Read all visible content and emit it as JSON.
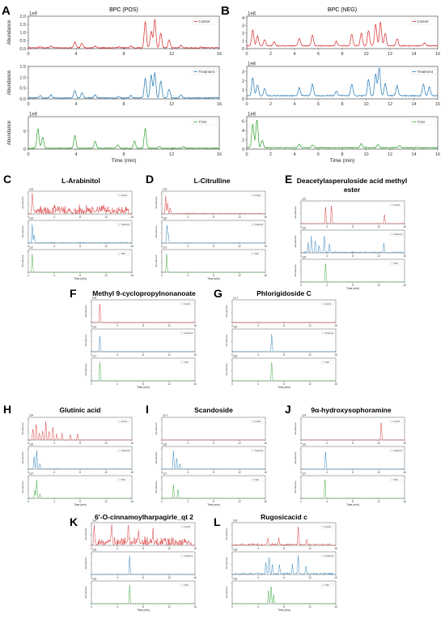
{
  "figure": {
    "colors": {
      "control": "#d62728",
      "treatment": "#1f77b4",
      "tcm": "#2ca02c",
      "axis": "#333333"
    }
  },
  "chart_data": [
    {
      "letter": "A",
      "title": "BPC (POS)",
      "type": "line",
      "xlim": [
        0,
        16
      ],
      "xticks": [
        "0",
        "4",
        "8",
        "12",
        "16"
      ],
      "xlabel": "Time (min)",
      "ylabel": "Abundance",
      "subplots": [
        {
          "series": "control",
          "legend": "Control",
          "exponent": "1e9",
          "yticks": [
            "0.0",
            "0.5",
            "1.0",
            "1.5",
            "2.0"
          ],
          "ylim": [
            0,
            2
          ],
          "peaks": [
            [
              1,
              0.08
            ],
            [
              1.9,
              0.12
            ],
            [
              3.9,
              0.35
            ],
            [
              4.5,
              0.3
            ],
            [
              5.6,
              0.12
            ],
            [
              7.6,
              0.06
            ],
            [
              8.6,
              0.12
            ],
            [
              9.8,
              1.6
            ],
            [
              10.3,
              1.0
            ],
            [
              10.6,
              1.75
            ],
            [
              11.1,
              0.9
            ],
            [
              11.8,
              0.5
            ],
            [
              12.8,
              0.15
            ],
            [
              14.5,
              0.05
            ]
          ],
          "baseline": 0.02
        },
        {
          "series": "treatment",
          "legend": "Treatment",
          "exponent": "",
          "yticks": [
            "0.0",
            "0.5",
            "1.0",
            "1.5"
          ],
          "ylim": [
            0,
            1.5
          ],
          "peaks": [
            [
              1,
              0.1
            ],
            [
              1.9,
              0.15
            ],
            [
              3.9,
              0.35
            ],
            [
              4.5,
              0.25
            ],
            [
              5.6,
              0.15
            ],
            [
              7.6,
              0.06
            ],
            [
              8.6,
              0.12
            ],
            [
              9.8,
              0.9
            ],
            [
              10.3,
              1.05
            ],
            [
              10.6,
              1.15
            ],
            [
              11.1,
              0.8
            ],
            [
              11.8,
              0.4
            ],
            [
              12.8,
              0.15
            ]
          ],
          "baseline": 0.02
        },
        {
          "series": "tcm",
          "legend": "TCM",
          "exponent": "1e8",
          "yticks": [
            "0",
            "5"
          ],
          "ylim": [
            0,
            9
          ],
          "peaks": [
            [
              0.8,
              5.5
            ],
            [
              1.2,
              3.0
            ],
            [
              3.9,
              3.5
            ],
            [
              5.6,
              2.0
            ],
            [
              7.5,
              1.0
            ],
            [
              8.9,
              2.0
            ],
            [
              9.8,
              5.5
            ],
            [
              11,
              0.5
            ],
            [
              13,
              0.5
            ]
          ],
          "baseline": 0.1
        }
      ]
    },
    {
      "letter": "B",
      "title": "BPC (NEG)",
      "type": "line",
      "xlim": [
        0,
        16
      ],
      "xticks": [
        "0",
        "2",
        "4",
        "6",
        "8",
        "10",
        "12",
        "14",
        "16"
      ],
      "xlabel": "Time (min)",
      "ylabel": "",
      "subplots": [
        {
          "series": "control",
          "legend": "Control",
          "exponent": "1e8",
          "yticks": [
            "0",
            "1",
            "2",
            "3",
            "4"
          ],
          "ylim": [
            0,
            4.2
          ],
          "peaks": [
            [
              0.5,
              2.0
            ],
            [
              0.9,
              1.3
            ],
            [
              1.5,
              0.8
            ],
            [
              2.3,
              0.5
            ],
            [
              4.4,
              1.0
            ],
            [
              5.5,
              1.4
            ],
            [
              7.5,
              0.6
            ],
            [
              8.8,
              1.5
            ],
            [
              9.6,
              1.7
            ],
            [
              10.2,
              2.0
            ],
            [
              10.8,
              2.8
            ],
            [
              11.2,
              3.1
            ],
            [
              11.6,
              1.6
            ],
            [
              12.6,
              0.9
            ],
            [
              14.9,
              0.4
            ]
          ],
          "baseline": 0.3
        },
        {
          "series": "treatment",
          "legend": "Treatment",
          "exponent": "1e8",
          "yticks": [
            "0",
            "1",
            "2",
            "3"
          ],
          "ylim": [
            0,
            3.6
          ],
          "peaks": [
            [
              0.5,
              2.0
            ],
            [
              0.9,
              1.2
            ],
            [
              1.5,
              0.8
            ],
            [
              4.4,
              0.9
            ],
            [
              5.5,
              1.3
            ],
            [
              7.5,
              0.5
            ],
            [
              8.8,
              1.3
            ],
            [
              10.2,
              1.8
            ],
            [
              10.8,
              2.4
            ],
            [
              11.1,
              3.1
            ],
            [
              11.6,
              1.4
            ],
            [
              12.6,
              1.1
            ],
            [
              14.8,
              1.3
            ],
            [
              15.3,
              1.0
            ]
          ],
          "baseline": 0.3
        },
        {
          "series": "tcm",
          "legend": "TCM",
          "exponent": "1e8",
          "yticks": [
            "0",
            "2",
            "4",
            "6"
          ],
          "ylim": [
            0,
            7
          ],
          "peaks": [
            [
              0.5,
              5.0
            ],
            [
              0.85,
              6.0
            ],
            [
              1.3,
              1.5
            ],
            [
              4.4,
              0.7
            ],
            [
              5.5,
              0.5
            ],
            [
              9.6,
              0.9
            ],
            [
              11,
              0.6
            ],
            [
              12.8,
              0.4
            ]
          ],
          "baseline": 0.2
        }
      ]
    },
    {
      "letter": "C",
      "title": "L-Arabinitol",
      "type": "line",
      "xlim": [
        0,
        16
      ],
      "xlabel": "Time (min)",
      "subplots": [
        {
          "series": "control",
          "legend": "Control",
          "exponent": "1e3",
          "noise": 0.55,
          "peaks": [
            [
              0.6,
              1.0
            ]
          ]
        },
        {
          "series": "treatment",
          "legend": "Treatment",
          "exponent": "1e3",
          "noise": 0.06,
          "peaks": [
            [
              0.6,
              1.0
            ],
            [
              0.9,
              0.45
            ]
          ]
        },
        {
          "series": "tcm",
          "legend": "TCM",
          "exponent": "1e7",
          "noise": 0.0,
          "peaks": [
            [
              0.6,
              1.0
            ]
          ]
        }
      ]
    },
    {
      "letter": "D",
      "title": "L-Citrulline",
      "type": "line",
      "xlim": [
        0,
        16
      ],
      "xlabel": "Time (min)",
      "subplots": [
        {
          "series": "control",
          "legend": "Control",
          "exponent": "1e3",
          "noise": 0.06,
          "peaks": [
            [
              0.6,
              0.95
            ],
            [
              0.9,
              0.6
            ],
            [
              1.3,
              0.3
            ]
          ]
        },
        {
          "series": "treatment",
          "legend": "Treatment",
          "exponent": "1e5",
          "noise": 0.02,
          "peaks": [
            [
              0.8,
              0.95
            ],
            [
              1.0,
              0.5
            ]
          ]
        },
        {
          "series": "tcm",
          "legend": "TCM",
          "exponent": "1e7",
          "noise": 0.0,
          "peaks": [
            [
              0.75,
              1.0
            ]
          ]
        }
      ]
    },
    {
      "letter": "E",
      "title": "Deacetylasperuloside acid methyl ester",
      "type": "line",
      "xlim": [
        0,
        16
      ],
      "xlabel": "Time (min)",
      "subplots": [
        {
          "series": "control",
          "legend": "Control",
          "exponent": "1e3",
          "noise": 0.0,
          "peaks": [
            [
              3.8,
              0.9
            ],
            [
              4.7,
              1.0
            ],
            [
              12.9,
              0.5
            ]
          ]
        },
        {
          "series": "treatment",
          "legend": "Treatment",
          "exponent": "1e3",
          "noise": 0.08,
          "peaks": [
            [
              1.1,
              0.5
            ],
            [
              1.6,
              0.85
            ],
            [
              2.2,
              0.65
            ],
            [
              2.8,
              0.4
            ],
            [
              3.6,
              0.95
            ],
            [
              4.4,
              0.5
            ],
            [
              12.8,
              0.5
            ]
          ]
        },
        {
          "series": "tcm",
          "legend": "TCM",
          "exponent": "1e6",
          "noise": 0.0,
          "peaks": [
            [
              3.8,
              1.0
            ]
          ]
        }
      ]
    },
    {
      "letter": "F",
      "title": "Methyl 9-cyclopropylnonanoate",
      "type": "line",
      "xlim": [
        0,
        16
      ],
      "xlabel": "Time (min)",
      "subplots": [
        {
          "series": "control",
          "legend": "Control",
          "exponent": "1e4",
          "noise": 0.0,
          "peaks": [
            [
              1.3,
              1.0
            ]
          ]
        },
        {
          "series": "treatment",
          "legend": "Treatment",
          "exponent": "1e4",
          "noise": 0.0,
          "peaks": [
            [
              1.3,
              0.85
            ]
          ]
        },
        {
          "series": "tcm",
          "legend": "TCM",
          "exponent": "1e7",
          "noise": 0.0,
          "peaks": [
            [
              1.3,
              1.0
            ]
          ]
        }
      ]
    },
    {
      "letter": "G",
      "title": "Phlorigidoside C",
      "type": "line",
      "xlim": [
        0,
        16
      ],
      "xlabel": "Time (min)",
      "subplots": [
        {
          "series": "control",
          "legend": "Control",
          "exponent": "1e-1",
          "noise": 0.0,
          "peaks": []
        },
        {
          "series": "treatment",
          "legend": "Treatment",
          "exponent": "1e5",
          "noise": 0.0,
          "peaks": [
            [
              6.1,
              0.95
            ]
          ]
        },
        {
          "series": "tcm",
          "legend": "TCM",
          "exponent": "1e6",
          "noise": 0.0,
          "peaks": [
            [
              6.1,
              1.0
            ]
          ]
        }
      ]
    },
    {
      "letter": "H",
      "title": "Glutinic acid",
      "type": "line",
      "xlim": [
        0,
        16
      ],
      "xlabel": "Time (min)",
      "subplots": [
        {
          "series": "control",
          "legend": "Control",
          "exponent": "1e4",
          "noise": 0.0,
          "peaks": [
            [
              0.7,
              0.6
            ],
            [
              1.2,
              0.9
            ],
            [
              1.7,
              0.4
            ],
            [
              2.2,
              0.5
            ],
            [
              2.7,
              1.0
            ],
            [
              3.2,
              0.45
            ],
            [
              3.8,
              0.7
            ],
            [
              4.4,
              0.35
            ],
            [
              5.2,
              0.4
            ],
            [
              6.5,
              0.3
            ],
            [
              7.6,
              0.35
            ]
          ]
        },
        {
          "series": "treatment",
          "legend": "Treatment",
          "exponent": "1e5",
          "noise": 0.04,
          "peaks": [
            [
              0.9,
              0.7
            ],
            [
              1.3,
              1.0
            ],
            [
              1.8,
              0.3
            ]
          ]
        },
        {
          "series": "tcm",
          "legend": "TCM",
          "exponent": "1e7",
          "noise": 0.0,
          "peaks": [
            [
              1.0,
              0.45
            ],
            [
              1.3,
              1.0
            ],
            [
              1.8,
              0.25
            ]
          ]
        }
      ]
    },
    {
      "letter": "I",
      "title": "Scandoside",
      "type": "line",
      "xlim": [
        0,
        16
      ],
      "xlabel": "Time (min)",
      "subplots": [
        {
          "series": "control",
          "legend": "Control",
          "exponent": "1e-1",
          "noise": 0.0,
          "peaks": []
        },
        {
          "series": "treatment",
          "legend": "Treatment",
          "exponent": "1e5",
          "noise": 0.02,
          "peaks": [
            [
              1.8,
              1.0
            ],
            [
              2.3,
              0.6
            ],
            [
              2.8,
              0.3
            ]
          ]
        },
        {
          "series": "tcm",
          "legend": "TCM",
          "exponent": "1e7",
          "noise": 0.0,
          "peaks": [
            [
              1.8,
              0.75
            ],
            [
              2.5,
              0.5
            ]
          ]
        }
      ]
    },
    {
      "letter": "J",
      "title": "9α-hydroxysophoramine",
      "type": "line",
      "xlim": [
        0,
        16
      ],
      "xlabel": "Time (min)",
      "subplots": [
        {
          "series": "control",
          "legend": "Control",
          "exponent": "1e4",
          "noise": 0.0,
          "peaks": [
            [
              12.4,
              1.0
            ]
          ]
        },
        {
          "series": "treatment",
          "legend": "Treatment",
          "exponent": "1e6",
          "noise": 0.0,
          "peaks": [
            [
              3.8,
              0.95
            ]
          ]
        },
        {
          "series": "tcm",
          "legend": "TCM",
          "exponent": "1e7",
          "noise": 0.0,
          "peaks": [
            [
              3.7,
              1.0
            ]
          ]
        }
      ]
    },
    {
      "letter": "K",
      "title": "6'-O-cinnamoylharpagirle_qt 2",
      "type": "line",
      "xlim": [
        0,
        16
      ],
      "xlabel": "Time (min)",
      "subplots": [
        {
          "series": "control",
          "legend": "Control",
          "exponent": "1e4",
          "noise": 0.5,
          "peaks": [
            [
              0.4,
              0.9
            ],
            [
              3.1,
              0.95
            ],
            [
              5.7,
              1.0
            ],
            [
              7.3,
              0.7
            ],
            [
              9.5,
              0.6
            ]
          ]
        },
        {
          "series": "treatment",
          "legend": "Treatment",
          "exponent": "1e5",
          "noise": 0.04,
          "peaks": [
            [
              5.9,
              1.0
            ]
          ]
        },
        {
          "series": "tcm",
          "legend": "TCM",
          "exponent": "1e6",
          "noise": 0.0,
          "peaks": [
            [
              5.9,
              1.0
            ]
          ]
        }
      ]
    },
    {
      "letter": "L",
      "title": "Rugosicacid c",
      "type": "line",
      "xlim": [
        0,
        16
      ],
      "xlabel": "Time (min)",
      "subplots": [
        {
          "series": "control",
          "legend": "Control",
          "exponent": "1e5",
          "noise": 0.12,
          "peaks": [
            [
              5.5,
              0.4
            ],
            [
              7.2,
              0.35
            ],
            [
              10.2,
              1.0
            ],
            [
              11.5,
              0.3
            ]
          ]
        },
        {
          "series": "treatment",
          "legend": "Treatment",
          "exponent": "1e5",
          "noise": 0.12,
          "peaks": [
            [
              5.2,
              0.6
            ],
            [
              5.7,
              0.9
            ],
            [
              6.2,
              0.5
            ],
            [
              7.3,
              0.5
            ],
            [
              9.3,
              0.5
            ],
            [
              10.2,
              1.0
            ],
            [
              11.4,
              0.4
            ]
          ]
        },
        {
          "series": "tcm",
          "legend": "TCM",
          "exponent": "1e5",
          "noise": 0.0,
          "peaks": [
            [
              5.6,
              0.7
            ],
            [
              6.0,
              1.0
            ],
            [
              6.4,
              0.5
            ]
          ]
        }
      ]
    }
  ]
}
